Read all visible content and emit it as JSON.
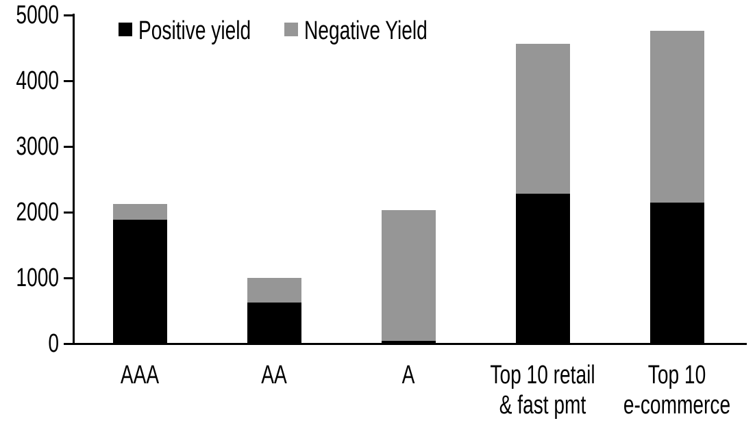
{
  "chart_data": {
    "type": "bar",
    "stacked": true,
    "title": "",
    "xlabel": "",
    "ylabel": "",
    "grid": false,
    "legend_position": "top",
    "ylim": [
      0,
      5000
    ],
    "yticks": [
      0,
      1000,
      2000,
      3000,
      4000,
      5000
    ],
    "categories": [
      "AAA",
      "AA",
      "A",
      "Top 10 retail & fast pmt",
      "Top 10 e-commerce"
    ],
    "category_label_lines": [
      [
        "AAA"
      ],
      [
        "AA"
      ],
      [
        "A"
      ],
      [
        "Top 10 retail",
        "& fast pmt"
      ],
      [
        "Top 10",
        "e-commerce"
      ]
    ],
    "series": [
      {
        "name": "Positive yield",
        "color": "#000000",
        "values": [
          1890,
          620,
          45,
          2280,
          2145
        ]
      },
      {
        "name": "Negative Yield",
        "color": "#969696",
        "values": [
          235,
          380,
          1985,
          2280,
          2615
        ]
      }
    ],
    "stack_totals": [
      2125,
      1000,
      2030,
      4560,
      4760
    ]
  },
  "colors": {
    "background": "#ffffff",
    "axis": "#000000",
    "positive_series": "#000000",
    "negative_series": "#969696"
  }
}
